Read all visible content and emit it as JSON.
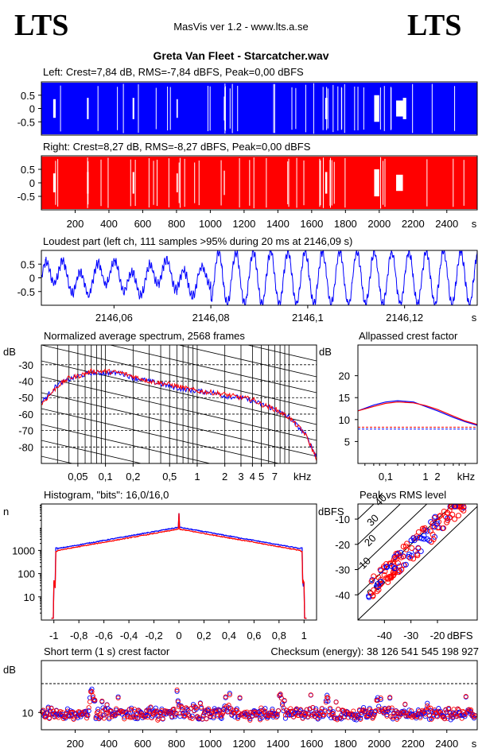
{
  "header": {
    "logo_left": "LTS",
    "logo_right": "LTS",
    "app_title": "MasVis ver 1.2 - www.lts.a.se",
    "track_title": "Greta Van Fleet - Starcatcher.wav"
  },
  "colors": {
    "left": "#0000ff",
    "right": "#ff0000",
    "axis": "#000000",
    "grid": "#000000"
  },
  "chart_data": [
    {
      "id": "left",
      "type": "area",
      "title": "Left: Crest=7,84 dB, RMS=-7,84 dBFS, Peak=0,00 dBFS",
      "ylim": [
        -1,
        1
      ],
      "yticks": [
        "0.5",
        "0",
        "-0.5"
      ],
      "ytick_values": [
        0.5,
        0,
        -0.5
      ]
    },
    {
      "id": "right",
      "type": "area",
      "title": "Right: Crest=8,27 dB, RMS=-8,27 dBFS, Peak=0,00 dBFS",
      "ylim": [
        -1,
        1
      ],
      "yticks": [
        "0.5",
        "0",
        "-0.5"
      ],
      "ytick_values": [
        0.5,
        0,
        -0.5
      ],
      "xlim": [
        0,
        2580
      ],
      "xticks": [
        "200",
        "400",
        "600",
        "800",
        "1000",
        "1200",
        "1400",
        "1600",
        "1800",
        "2000",
        "2200",
        "2400",
        "s"
      ],
      "xtick_values": [
        200,
        400,
        600,
        800,
        1000,
        1200,
        1400,
        1600,
        1800,
        2000,
        2200,
        2400
      ]
    },
    {
      "id": "loudest",
      "type": "line",
      "title": "Loudest part (left  ch, 111 samples >95% during 20 ms at 2146,09 s)",
      "xlim": [
        2146.045,
        2146.135
      ],
      "ylim": [
        -1,
        1
      ],
      "yticks": [
        "0.5",
        "0",
        "-0.5"
      ],
      "ytick_values": [
        0.5,
        0,
        -0.5
      ],
      "xticks": [
        "2146,06",
        "2146,08",
        "2146,1",
        "2146,12",
        "s"
      ],
      "xtick_values": [
        2146.06,
        2146.08,
        2146.1,
        2146.12
      ]
    },
    {
      "id": "spectrum",
      "type": "line",
      "title": "Normalized average spectrum, 2568 frames",
      "ylabel": "dB",
      "xlabel": "kHz",
      "log_x": true,
      "xlim": [
        0.02,
        20
      ],
      "ylim": [
        -90,
        -18
      ],
      "yticks": [
        "-30",
        "-40",
        "-50",
        "-60",
        "-70",
        "-80"
      ],
      "ytick_values": [
        -30,
        -40,
        -50,
        -60,
        -70,
        -80
      ],
      "xticks": [
        "0,05",
        "0,1",
        "0,2",
        "0,5",
        "1",
        "2",
        "3",
        "4",
        "5",
        "7"
      ],
      "xtick_values": [
        0.05,
        0.1,
        0.2,
        0.5,
        1,
        2,
        3,
        4,
        5,
        7
      ],
      "series": [
        {
          "x": [
            0.02,
            0.025,
            0.03,
            0.04,
            0.05,
            0.07,
            0.1,
            0.15,
            0.2,
            0.3,
            0.5,
            0.7,
            1,
            1.5,
            2,
            3,
            4,
            5,
            7,
            10,
            15,
            20
          ],
          "values": [
            -53,
            -47,
            -42,
            -39,
            -37,
            -35,
            -35,
            -35,
            -38,
            -40,
            -43,
            -45,
            -46,
            -47,
            -49,
            -50,
            -52,
            -54,
            -57,
            -62,
            -72,
            -86
          ]
        },
        {
          "x": [
            0.02,
            0.025,
            0.03,
            0.04,
            0.05,
            0.07,
            0.1,
            0.15,
            0.2,
            0.3,
            0.5,
            0.7,
            1,
            1.5,
            2,
            3,
            4,
            5,
            7,
            10,
            15,
            20
          ],
          "values": [
            -54,
            -48,
            -43,
            -38,
            -37,
            -34,
            -34,
            -35,
            -37,
            -40,
            -42,
            -44,
            -46,
            -47,
            -48,
            -50,
            -51,
            -54,
            -57,
            -62,
            -72,
            -87
          ]
        }
      ]
    },
    {
      "id": "crest",
      "type": "line",
      "title": "Allpassed crest factor",
      "ylabel": "dB",
      "xlabel": "kHz",
      "log_x": true,
      "xlim": [
        0.02,
        20
      ],
      "ylim": [
        0,
        27
      ],
      "yticks": [
        "20",
        "15",
        "10",
        "5"
      ],
      "ytick_values": [
        20,
        15,
        10,
        5
      ],
      "xticks": [
        "0,1",
        "1",
        "2",
        "kHz"
      ],
      "xtick_values": [
        0.1,
        1,
        2
      ],
      "series": [
        {
          "x": [
            0.02,
            0.05,
            0.1,
            0.2,
            0.5,
            1,
            2,
            5,
            10,
            20
          ],
          "values": [
            12,
            13.3,
            14,
            14.3,
            14,
            13,
            12,
            10.5,
            9.5,
            8.7
          ]
        },
        {
          "x": [
            0.02,
            0.05,
            0.1,
            0.2,
            0.5,
            1,
            2,
            5,
            10,
            20
          ],
          "values": [
            12,
            13,
            13.7,
            14,
            13.8,
            13.2,
            12.3,
            10.8,
            9.7,
            8.9
          ]
        }
      ],
      "reference_levels": [
        7.84,
        8.27
      ]
    },
    {
      "id": "histogram",
      "type": "line",
      "title": "Histogram, \"bits\": 16,0/16,0",
      "ylabel": "n",
      "log_y": true,
      "xlim": [
        -1.1,
        1.1
      ],
      "ylim": [
        1,
        100000
      ],
      "yticks": [
        "1000",
        "100",
        "10"
      ],
      "ytick_values": [
        1000,
        100,
        10
      ],
      "xticks": [
        "-1",
        "-0,8",
        "-0,6",
        "-0,4",
        "-0,2",
        "0",
        "0,2",
        "0,4",
        "0,6",
        "0,8",
        "1"
      ],
      "xtick_values": [
        -1,
        -0.8,
        -0.6,
        -0.4,
        -0.2,
        0,
        0.2,
        0.4,
        0.6,
        0.8,
        1
      ]
    },
    {
      "id": "peakrms",
      "type": "scatter",
      "title": "Peak vs RMS level",
      "ylabel": "dBFS",
      "xlabel": "dBFS",
      "xlim": [
        -50,
        -5
      ],
      "ylim": [
        -50,
        -4
      ],
      "yticks": [
        "-10",
        "-20",
        "-30",
        "-40"
      ],
      "ytick_values": [
        -10,
        -20,
        -30,
        -40
      ],
      "xticks": [
        "-40",
        "-30",
        "-20"
      ],
      "xtick_values": [
        -40,
        -30,
        -20
      ],
      "diagonal_labels": [
        "0 dB",
        "10",
        "20",
        "30",
        "40"
      ]
    },
    {
      "id": "shortterm",
      "type": "scatter",
      "title": "Short term (1 s) crest factor",
      "checksum": "Checksum (energy):  38 126 541 545 198 927",
      "ylabel": "dB",
      "xlim": [
        0,
        2580
      ],
      "ylim": [
        4,
        28
      ],
      "yticks": [
        "10"
      ],
      "ytick_values": [
        10
      ],
      "xticks": [
        "200",
        "400",
        "600",
        "800",
        "1000",
        "1200",
        "1400",
        "1600",
        "1800",
        "2000",
        "2200",
        "2400",
        "s"
      ],
      "xtick_values": [
        200,
        400,
        600,
        800,
        1000,
        1200,
        1400,
        1600,
        1800,
        2000,
        2200,
        2400
      ],
      "reference_level": 20
    }
  ]
}
